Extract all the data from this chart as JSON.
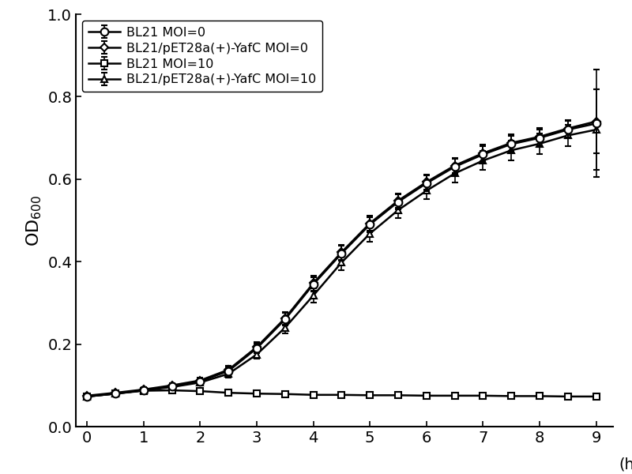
{
  "title": "",
  "xlabel": "(h)",
  "ylabel": "OD$_{600}$",
  "xlim": [
    -0.2,
    9.3
  ],
  "ylim": [
    0.0,
    1.0
  ],
  "xticks": [
    0,
    1,
    2,
    3,
    4,
    5,
    6,
    7,
    8,
    9
  ],
  "yticks": [
    0.0,
    0.2,
    0.4,
    0.6,
    0.8,
    1.0
  ],
  "legend_labels": [
    "BL21 MOI=0",
    "BL21/pET28a(+)-YafC MOI=0",
    "BL21 MOI=10",
    "BL21/pET28a(+)-YafC MOI=10"
  ],
  "x": [
    0,
    0.5,
    1.0,
    1.5,
    2.0,
    2.5,
    3.0,
    3.5,
    4.0,
    4.5,
    5.0,
    5.5,
    6.0,
    6.5,
    7.0,
    7.5,
    8.0,
    8.5,
    9.0
  ],
  "series1_y": [
    0.073,
    0.08,
    0.088,
    0.098,
    0.11,
    0.135,
    0.19,
    0.26,
    0.345,
    0.42,
    0.49,
    0.545,
    0.59,
    0.63,
    0.66,
    0.685,
    0.7,
    0.72,
    0.735
  ],
  "series1_err": [
    0.005,
    0.005,
    0.005,
    0.006,
    0.007,
    0.009,
    0.012,
    0.015,
    0.018,
    0.018,
    0.018,
    0.018,
    0.019,
    0.019,
    0.02,
    0.02,
    0.021,
    0.021,
    0.13
  ],
  "series2_y": [
    0.075,
    0.082,
    0.09,
    0.1,
    0.112,
    0.138,
    0.193,
    0.263,
    0.348,
    0.423,
    0.493,
    0.548,
    0.593,
    0.633,
    0.663,
    0.688,
    0.703,
    0.723,
    0.74
  ],
  "series2_err": [
    0.005,
    0.005,
    0.005,
    0.006,
    0.007,
    0.009,
    0.012,
    0.015,
    0.018,
    0.018,
    0.018,
    0.018,
    0.019,
    0.019,
    0.02,
    0.02,
    0.021,
    0.021,
    0.078
  ],
  "series3_y": [
    0.073,
    0.08,
    0.087,
    0.088,
    0.086,
    0.082,
    0.08,
    0.079,
    0.077,
    0.077,
    0.076,
    0.076,
    0.075,
    0.075,
    0.075,
    0.074,
    0.074,
    0.073,
    0.073
  ],
  "series3_err": [
    0.004,
    0.004,
    0.004,
    0.004,
    0.004,
    0.004,
    0.004,
    0.004,
    0.003,
    0.003,
    0.003,
    0.003,
    0.003,
    0.003,
    0.003,
    0.003,
    0.003,
    0.003,
    0.003
  ],
  "series4_y": [
    0.073,
    0.08,
    0.088,
    0.096,
    0.107,
    0.128,
    0.175,
    0.24,
    0.318,
    0.398,
    0.468,
    0.525,
    0.572,
    0.614,
    0.645,
    0.67,
    0.686,
    0.706,
    0.72
  ],
  "series4_err": [
    0.005,
    0.005,
    0.005,
    0.006,
    0.007,
    0.009,
    0.011,
    0.014,
    0.017,
    0.018,
    0.019,
    0.02,
    0.021,
    0.022,
    0.023,
    0.024,
    0.025,
    0.025,
    0.098
  ],
  "line_color": "#000000",
  "background_color": "#ffffff",
  "figsize": [
    8.0,
    6.0
  ],
  "dpi": 100
}
